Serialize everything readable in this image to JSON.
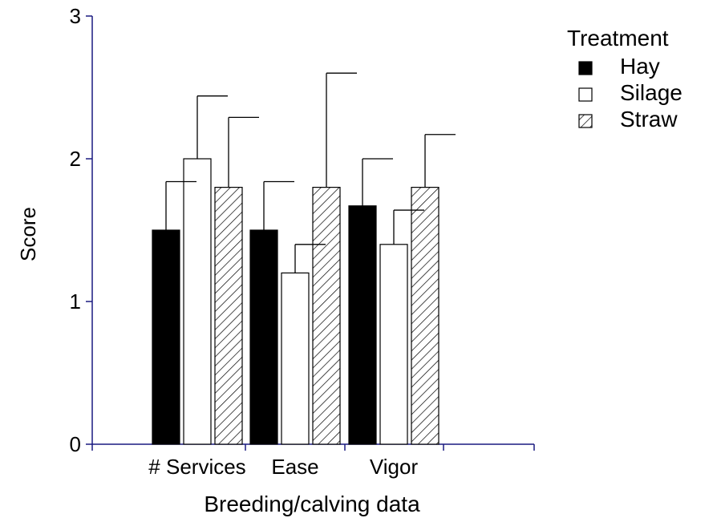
{
  "chart_data": {
    "type": "bar",
    "categories": [
      "# Services",
      "Ease",
      "Vigor"
    ],
    "series": [
      {
        "name": "Hay",
        "values": [
          1.5,
          1.5,
          1.67
        ],
        "errors": [
          0.34,
          0.34,
          0.33
        ],
        "fill": "#000000",
        "pattern": "solid"
      },
      {
        "name": "Silage",
        "values": [
          2.0,
          1.2,
          1.4
        ],
        "errors": [
          0.44,
          0.2,
          0.24
        ],
        "fill": "#ffffff",
        "pattern": "none"
      },
      {
        "name": "Straw",
        "values": [
          1.8,
          1.8,
          1.8
        ],
        "errors": [
          0.49,
          0.8,
          0.37
        ],
        "fill": "#ffffff",
        "pattern": "hatch"
      }
    ],
    "xlabel": "Breeding/calving data",
    "ylabel": "Score",
    "ylim": [
      0,
      3
    ],
    "yticks": [
      0,
      1,
      2,
      3
    ],
    "legend_title": "Treatment",
    "legend_position": "top-right",
    "grid": false,
    "axis_color": "#1a1a80"
  }
}
